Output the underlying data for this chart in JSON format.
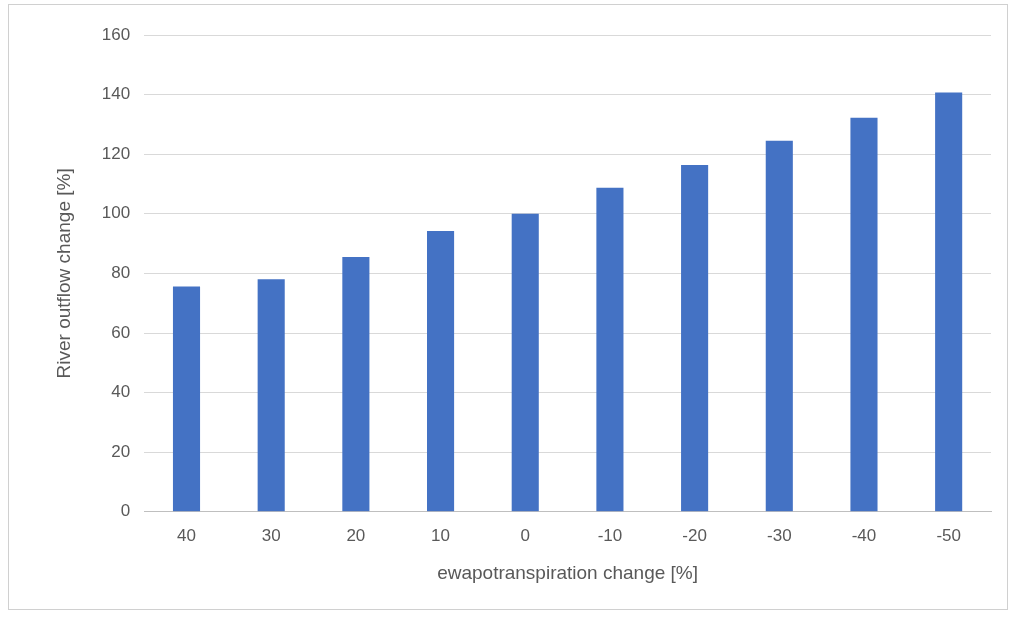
{
  "chart_data": {
    "type": "bar",
    "xlabel": "ewapotranspiration change [%]",
    "ylabel": "River outflow change [%]",
    "categories": [
      "40",
      "30",
      "20",
      "10",
      "0",
      "-10",
      "-20",
      "-30",
      "-40",
      "-50"
    ],
    "values": [
      75.6,
      78,
      85.5,
      94.2,
      100,
      108.7,
      116.4,
      124.5,
      132.2,
      140.7
    ],
    "color": "#4472c4",
    "ylim": [
      0,
      160
    ],
    "yticks": [
      0,
      20,
      40,
      60,
      80,
      100,
      120,
      140,
      160
    ],
    "grid": "y"
  }
}
